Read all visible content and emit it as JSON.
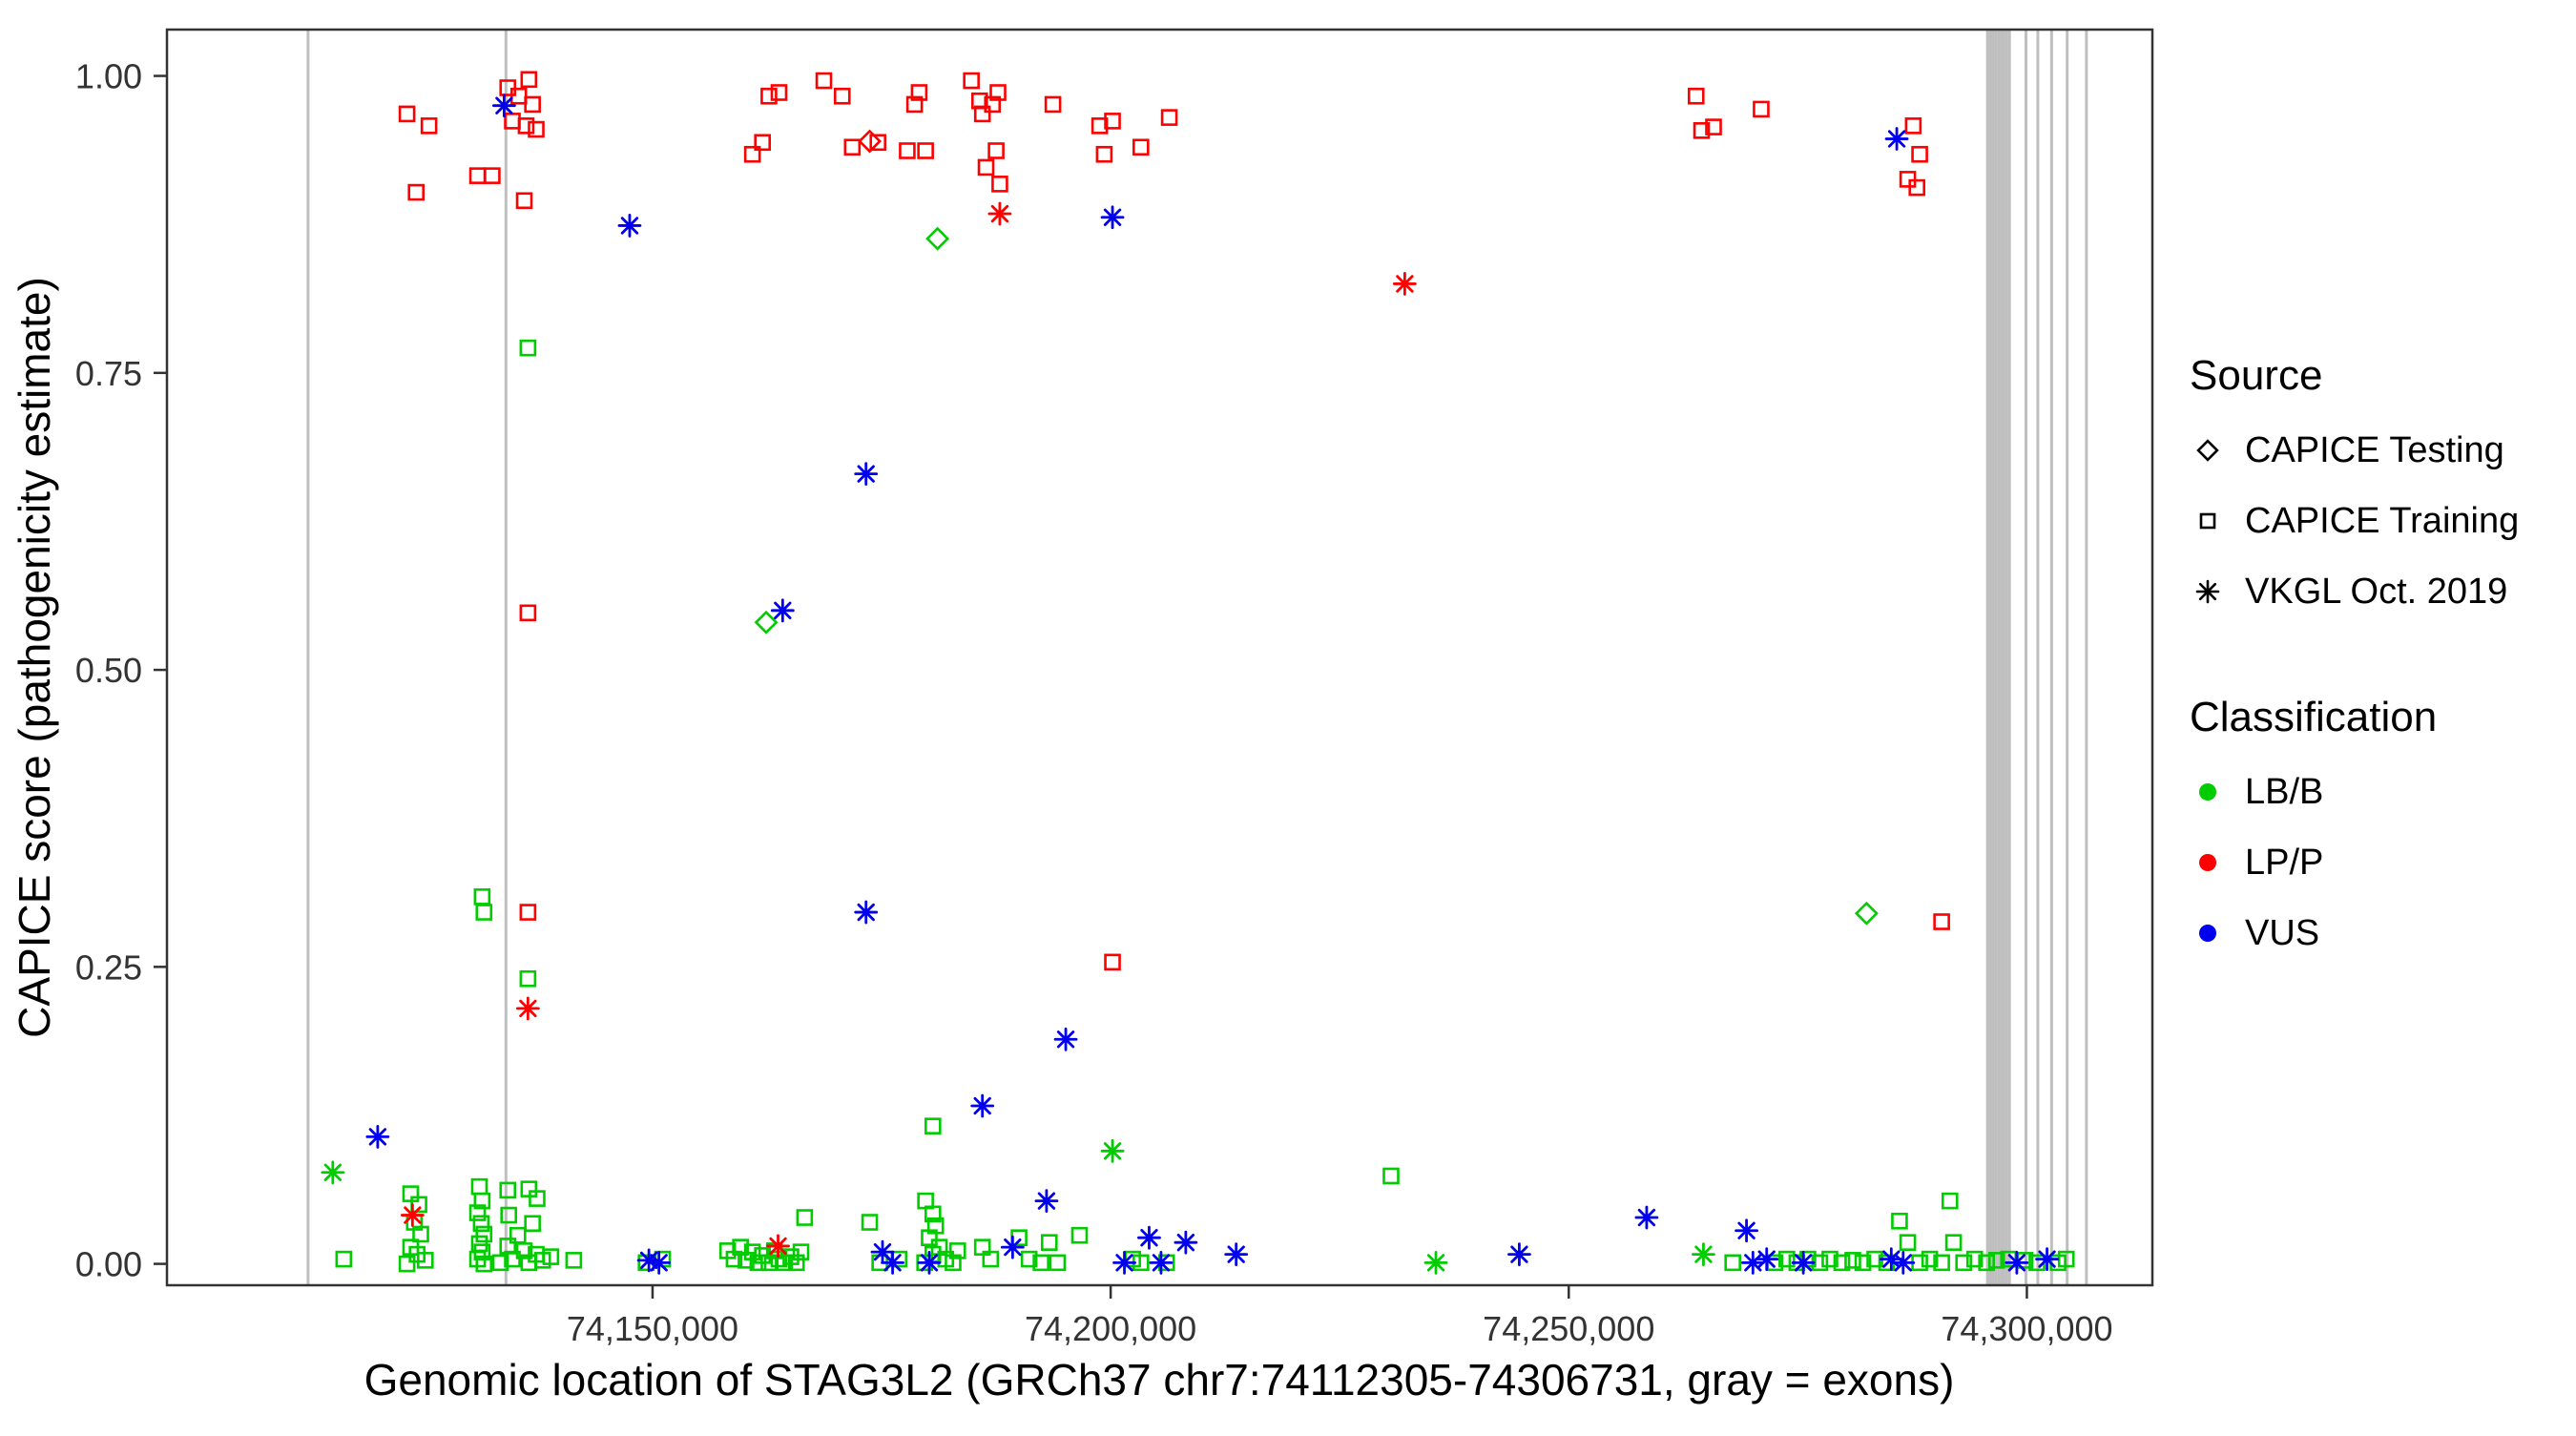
{
  "legend": {
    "source_title": "Source",
    "source_items": [
      "CAPICE Testing",
      "CAPICE Training",
      "VKGL Oct. 2019"
    ],
    "classification_title": "Classification",
    "classification_items": [
      "LB/B",
      "LP/P",
      "VUS"
    ]
  },
  "chart_data": {
    "type": "scatter",
    "title": "",
    "xlabel": "Genomic location of STAG3L2 (GRCh37 chr7:74112305-74306731, gray = exons)",
    "ylabel": "CAPICE score (pathogenicity estimate)",
    "xlim": [
      74097000,
      74313700
    ],
    "ylim": [
      -0.018,
      1.039
    ],
    "grid": false,
    "legend_position": "right",
    "x_ticks": [
      {
        "v": 74150000,
        "label": "74,150,000"
      },
      {
        "v": 74200000,
        "label": "74,200,000"
      },
      {
        "v": 74250000,
        "label": "74,250,000"
      },
      {
        "v": 74300000,
        "label": "74,300,000"
      }
    ],
    "y_ticks": [
      {
        "v": 0.0,
        "label": "0.00"
      },
      {
        "v": 0.25,
        "label": "0.25"
      },
      {
        "v": 0.5,
        "label": "0.50"
      },
      {
        "v": 0.75,
        "label": "0.75"
      },
      {
        "v": 1.0,
        "label": "1.00"
      }
    ],
    "palette": {
      "lbb": "#00CC00",
      "lpp": "#FF0000",
      "vus": "#0000EE"
    },
    "exon_color": "#BFBFBF",
    "exons": [
      74112400,
      74134000,
      74295700,
      74296000,
      74296300,
      74296600,
      74296900,
      74297200,
      74297500,
      74297800,
      74298100,
      74299900,
      74301200,
      74302700,
      74304400,
      74306500
    ],
    "series": [
      {
        "name": "CAPICE Testing LB/B",
        "source": "CAPICE Testing",
        "classification": "LB/B",
        "marker": "diamond",
        "color_key": "lbb",
        "points": [
          [
            74181100,
            0.863
          ],
          [
            74162400,
            0.54
          ],
          [
            74282500,
            0.295
          ]
        ]
      },
      {
        "name": "CAPICE Testing LP/P",
        "source": "CAPICE Testing",
        "classification": "LP/P",
        "marker": "diamond",
        "color_key": "lpp",
        "points": [
          [
            74173700,
            0.945
          ]
        ]
      },
      {
        "name": "CAPICE Training LB/B",
        "source": "CAPICE Training",
        "classification": "LB/B",
        "marker": "square",
        "color_key": "lbb",
        "points": [
          [
            74136400,
            0.771
          ],
          [
            74131400,
            0.309
          ],
          [
            74131600,
            0.296
          ],
          [
            74136400,
            0.24
          ],
          [
            74180600,
            0.116
          ],
          [
            74230600,
            0.074
          ],
          [
            74116300,
            0.004
          ],
          [
            74123600,
            0.059
          ],
          [
            74124500,
            0.05
          ],
          [
            74124000,
            0.035
          ],
          [
            74124700,
            0.025
          ],
          [
            74123600,
            0.014
          ],
          [
            74124300,
            0.008
          ],
          [
            74125200,
            0.003
          ],
          [
            74123200,
            0.0
          ],
          [
            74131100,
            0.065
          ],
          [
            74131400,
            0.053
          ],
          [
            74130900,
            0.043
          ],
          [
            74131300,
            0.034
          ],
          [
            74131600,
            0.025
          ],
          [
            74131100,
            0.017
          ],
          [
            74131400,
            0.01
          ],
          [
            74130900,
            0.004
          ],
          [
            74131600,
            0.0
          ],
          [
            74134200,
            0.062
          ],
          [
            74136500,
            0.063
          ],
          [
            74137400,
            0.055
          ],
          [
            74134300,
            0.041
          ],
          [
            74136900,
            0.034
          ],
          [
            74135300,
            0.024
          ],
          [
            74134200,
            0.015
          ],
          [
            74136000,
            0.011
          ],
          [
            74137300,
            0.008
          ],
          [
            74134700,
            0.004
          ],
          [
            74136500,
            0.001
          ],
          [
            74133400,
            0.001
          ],
          [
            74138000,
            0.003
          ],
          [
            74138900,
            0.006
          ],
          [
            74141400,
            0.003
          ],
          [
            74149300,
            0.001
          ],
          [
            74151100,
            0.004
          ],
          [
            74158200,
            0.011
          ],
          [
            74158900,
            0.004
          ],
          [
            74159600,
            0.014
          ],
          [
            74160200,
            0.003
          ],
          [
            74160900,
            0.01
          ],
          [
            74161500,
            0.001
          ],
          [
            74162000,
            0.007
          ],
          [
            74162700,
            0.001
          ],
          [
            74163300,
            0.011
          ],
          [
            74163800,
            0.004
          ],
          [
            74164400,
            0.001
          ],
          [
            74165100,
            0.006
          ],
          [
            74165700,
            0.001
          ],
          [
            74166200,
            0.01
          ],
          [
            74166600,
            0.039
          ],
          [
            74173700,
            0.035
          ],
          [
            74174800,
            0.001
          ],
          [
            74176900,
            0.004
          ],
          [
            74179800,
            0.053
          ],
          [
            74180600,
            0.042
          ],
          [
            74180900,
            0.032
          ],
          [
            74180200,
            0.022
          ],
          [
            74181300,
            0.014
          ],
          [
            74180600,
            0.008
          ],
          [
            74179700,
            0.001
          ],
          [
            74182000,
            0.004
          ],
          [
            74182800,
            0.001
          ],
          [
            74183300,
            0.011
          ],
          [
            74186000,
            0.014
          ],
          [
            74186900,
            0.004
          ],
          [
            74190000,
            0.022
          ],
          [
            74191100,
            0.004
          ],
          [
            74192400,
            0.001
          ],
          [
            74193300,
            0.018
          ],
          [
            74194200,
            0.001
          ],
          [
            74196600,
            0.024
          ],
          [
            74202400,
            0.004
          ],
          [
            74203300,
            0.001
          ],
          [
            74206100,
            0.001
          ],
          [
            74267900,
            0.001
          ],
          [
            74272500,
            0.001
          ],
          [
            74273800,
            0.004
          ],
          [
            74274900,
            0.001
          ],
          [
            74276100,
            0.004
          ],
          [
            74277400,
            0.001
          ],
          [
            74278500,
            0.004
          ],
          [
            74279800,
            0.001
          ],
          [
            74281000,
            0.003
          ],
          [
            74282100,
            0.001
          ],
          [
            74283400,
            0.004
          ],
          [
            74284700,
            0.001
          ],
          [
            74286100,
            0.036
          ],
          [
            74287000,
            0.018
          ],
          [
            74288300,
            0.001
          ],
          [
            74289400,
            0.004
          ],
          [
            74290700,
            0.001
          ],
          [
            74291600,
            0.053
          ],
          [
            74292000,
            0.018
          ],
          [
            74293100,
            0.001
          ],
          [
            74294300,
            0.004
          ],
          [
            74295600,
            0.001
          ],
          [
            74296700,
            0.003
          ],
          [
            74298000,
            0.004
          ],
          [
            74299800,
            0.003
          ],
          [
            74301100,
            0.001
          ],
          [
            74303400,
            0.001
          ],
          [
            74304300,
            0.004
          ]
        ]
      },
      {
        "name": "CAPICE Training LP/P",
        "source": "CAPICE Training",
        "classification": "LP/P",
        "marker": "square",
        "color_key": "lpp",
        "points": [
          [
            74123200,
            0.968
          ],
          [
            74125600,
            0.958
          ],
          [
            74124200,
            0.902
          ],
          [
            74130900,
            0.916
          ],
          [
            74132500,
            0.916
          ],
          [
            74134200,
            0.99
          ],
          [
            74135400,
            0.983
          ],
          [
            74136500,
            0.997
          ],
          [
            74136900,
            0.976
          ],
          [
            74134700,
            0.962
          ],
          [
            74136200,
            0.958
          ],
          [
            74137300,
            0.955
          ],
          [
            74136000,
            0.895
          ],
          [
            74136400,
            0.548
          ],
          [
            74136400,
            0.296
          ],
          [
            74160900,
            0.934
          ],
          [
            74162000,
            0.944
          ],
          [
            74162700,
            0.983
          ],
          [
            74163800,
            0.986
          ],
          [
            74168700,
            0.996
          ],
          [
            74170700,
            0.983
          ],
          [
            74171800,
            0.94
          ],
          [
            74174600,
            0.944
          ],
          [
            74177800,
            0.937
          ],
          [
            74178600,
            0.976
          ],
          [
            74179100,
            0.986
          ],
          [
            74179800,
            0.937
          ],
          [
            74184800,
            0.996
          ],
          [
            74185700,
            0.979
          ],
          [
            74186000,
            0.968
          ],
          [
            74186400,
            0.923
          ],
          [
            74187100,
            0.976
          ],
          [
            74187700,
            0.986
          ],
          [
            74187500,
            0.937
          ],
          [
            74187900,
            0.909
          ],
          [
            74193700,
            0.976
          ],
          [
            74198800,
            0.958
          ],
          [
            74199300,
            0.934
          ],
          [
            74200200,
            0.962
          ],
          [
            74203300,
            0.94
          ],
          [
            74206400,
            0.965
          ],
          [
            74200200,
            0.254
          ],
          [
            74263900,
            0.983
          ],
          [
            74264500,
            0.954
          ],
          [
            74265800,
            0.957
          ],
          [
            74271000,
            0.972
          ],
          [
            74287600,
            0.958
          ],
          [
            74288300,
            0.934
          ],
          [
            74287000,
            0.913
          ],
          [
            74288000,
            0.906
          ],
          [
            74290700,
            0.288
          ]
        ]
      },
      {
        "name": "VKGL Oct. 2019 LB/B",
        "source": "VKGL Oct. 2019",
        "classification": "LB/B",
        "marker": "asterisk",
        "color_key": "lbb",
        "points": [
          [
            74115100,
            0.077
          ],
          [
            74200200,
            0.095
          ],
          [
            74235500,
            0.001
          ],
          [
            74264700,
            0.008
          ]
        ]
      },
      {
        "name": "VKGL Oct. 2019 LP/P",
        "source": "VKGL Oct. 2019",
        "classification": "LP/P",
        "marker": "asterisk",
        "color_key": "lpp",
        "points": [
          [
            74187900,
            0.884
          ],
          [
            74232100,
            0.825
          ],
          [
            74136400,
            0.215
          ],
          [
            74123800,
            0.041
          ],
          [
            74163700,
            0.015
          ]
        ]
      },
      {
        "name": "VKGL Oct. 2019 VUS",
        "source": "VKGL Oct. 2019",
        "classification": "VUS",
        "marker": "asterisk",
        "color_key": "vus",
        "points": [
          [
            74133800,
            0.975
          ],
          [
            74147500,
            0.874
          ],
          [
            74200200,
            0.881
          ],
          [
            74285800,
            0.947
          ],
          [
            74173300,
            0.665
          ],
          [
            74164200,
            0.55
          ],
          [
            74173300,
            0.296
          ],
          [
            74195100,
            0.189
          ],
          [
            74186000,
            0.133
          ],
          [
            74193000,
            0.053
          ],
          [
            74120000,
            0.107
          ],
          [
            74149600,
            0.003
          ],
          [
            74150700,
            0.001
          ],
          [
            74175100,
            0.01
          ],
          [
            74176200,
            0.001
          ],
          [
            74180200,
            0.001
          ],
          [
            74189300,
            0.014
          ],
          [
            74201500,
            0.001
          ],
          [
            74204200,
            0.022
          ],
          [
            74205500,
            0.001
          ],
          [
            74208200,
            0.018
          ],
          [
            74213700,
            0.008
          ],
          [
            74244600,
            0.008
          ],
          [
            74258500,
            0.039
          ],
          [
            74269400,
            0.028
          ],
          [
            74270100,
            0.001
          ],
          [
            74271600,
            0.004
          ],
          [
            74275600,
            0.001
          ],
          [
            74285200,
            0.004
          ],
          [
            74286500,
            0.001
          ],
          [
            74298900,
            0.001
          ],
          [
            74302200,
            0.004
          ]
        ]
      }
    ]
  }
}
